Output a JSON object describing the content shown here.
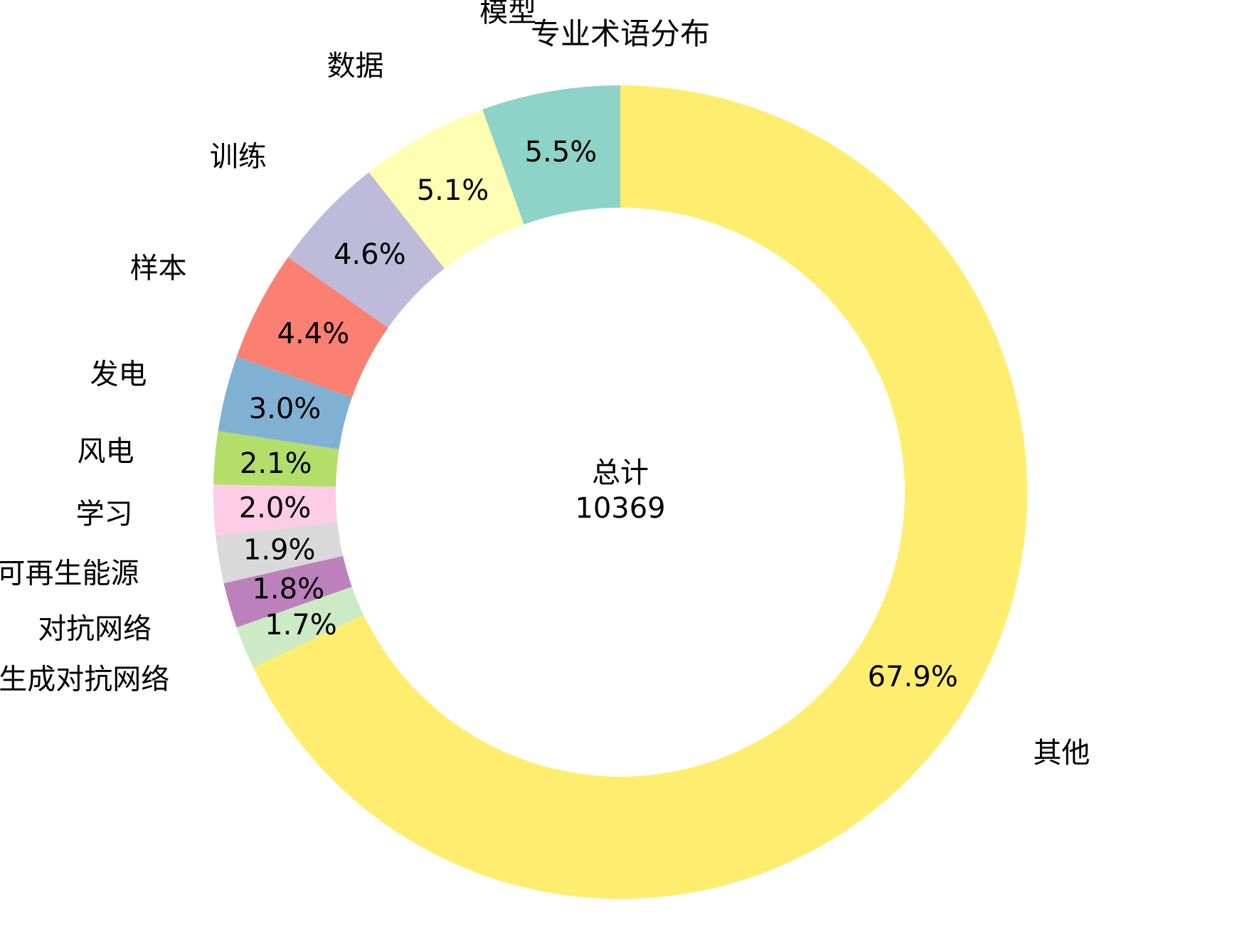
{
  "chart_data": {
    "type": "donut",
    "title": "专业术语分布",
    "center_label": "总计",
    "center_value": "10369",
    "start_angle_deg": 90,
    "direction": "counterclockwise",
    "slices": [
      {
        "label": "模型",
        "percent": 5.5,
        "pct_text": "5.5%",
        "color": "#8dd3c7"
      },
      {
        "label": "数据",
        "percent": 5.1,
        "pct_text": "5.1%",
        "color": "#ffffb3"
      },
      {
        "label": "训练",
        "percent": 4.6,
        "pct_text": "4.6%",
        "color": "#bebada"
      },
      {
        "label": "样本",
        "percent": 4.4,
        "pct_text": "4.4%",
        "color": "#fb8072"
      },
      {
        "label": "发电",
        "percent": 3.0,
        "pct_text": "3.0%",
        "color": "#80b1d3"
      },
      {
        "label": "风电",
        "percent": 2.1,
        "pct_text": "2.1%",
        "color": "#b3de69"
      },
      {
        "label": "学习",
        "percent": 2.0,
        "pct_text": "2.0%",
        "color": "#fccde5"
      },
      {
        "label": "可再生能源",
        "percent": 1.9,
        "pct_text": "1.9%",
        "color": "#d9d9d9"
      },
      {
        "label": "对抗网络",
        "percent": 1.8,
        "pct_text": "1.8%",
        "color": "#bc80bd"
      },
      {
        "label": "生成对抗网络",
        "percent": 1.7,
        "pct_text": "1.7%",
        "color": "#ccebc5"
      },
      {
        "label": "其他",
        "percent": 67.9,
        "pct_text": "67.9%",
        "color": "#ffed6f"
      }
    ]
  }
}
